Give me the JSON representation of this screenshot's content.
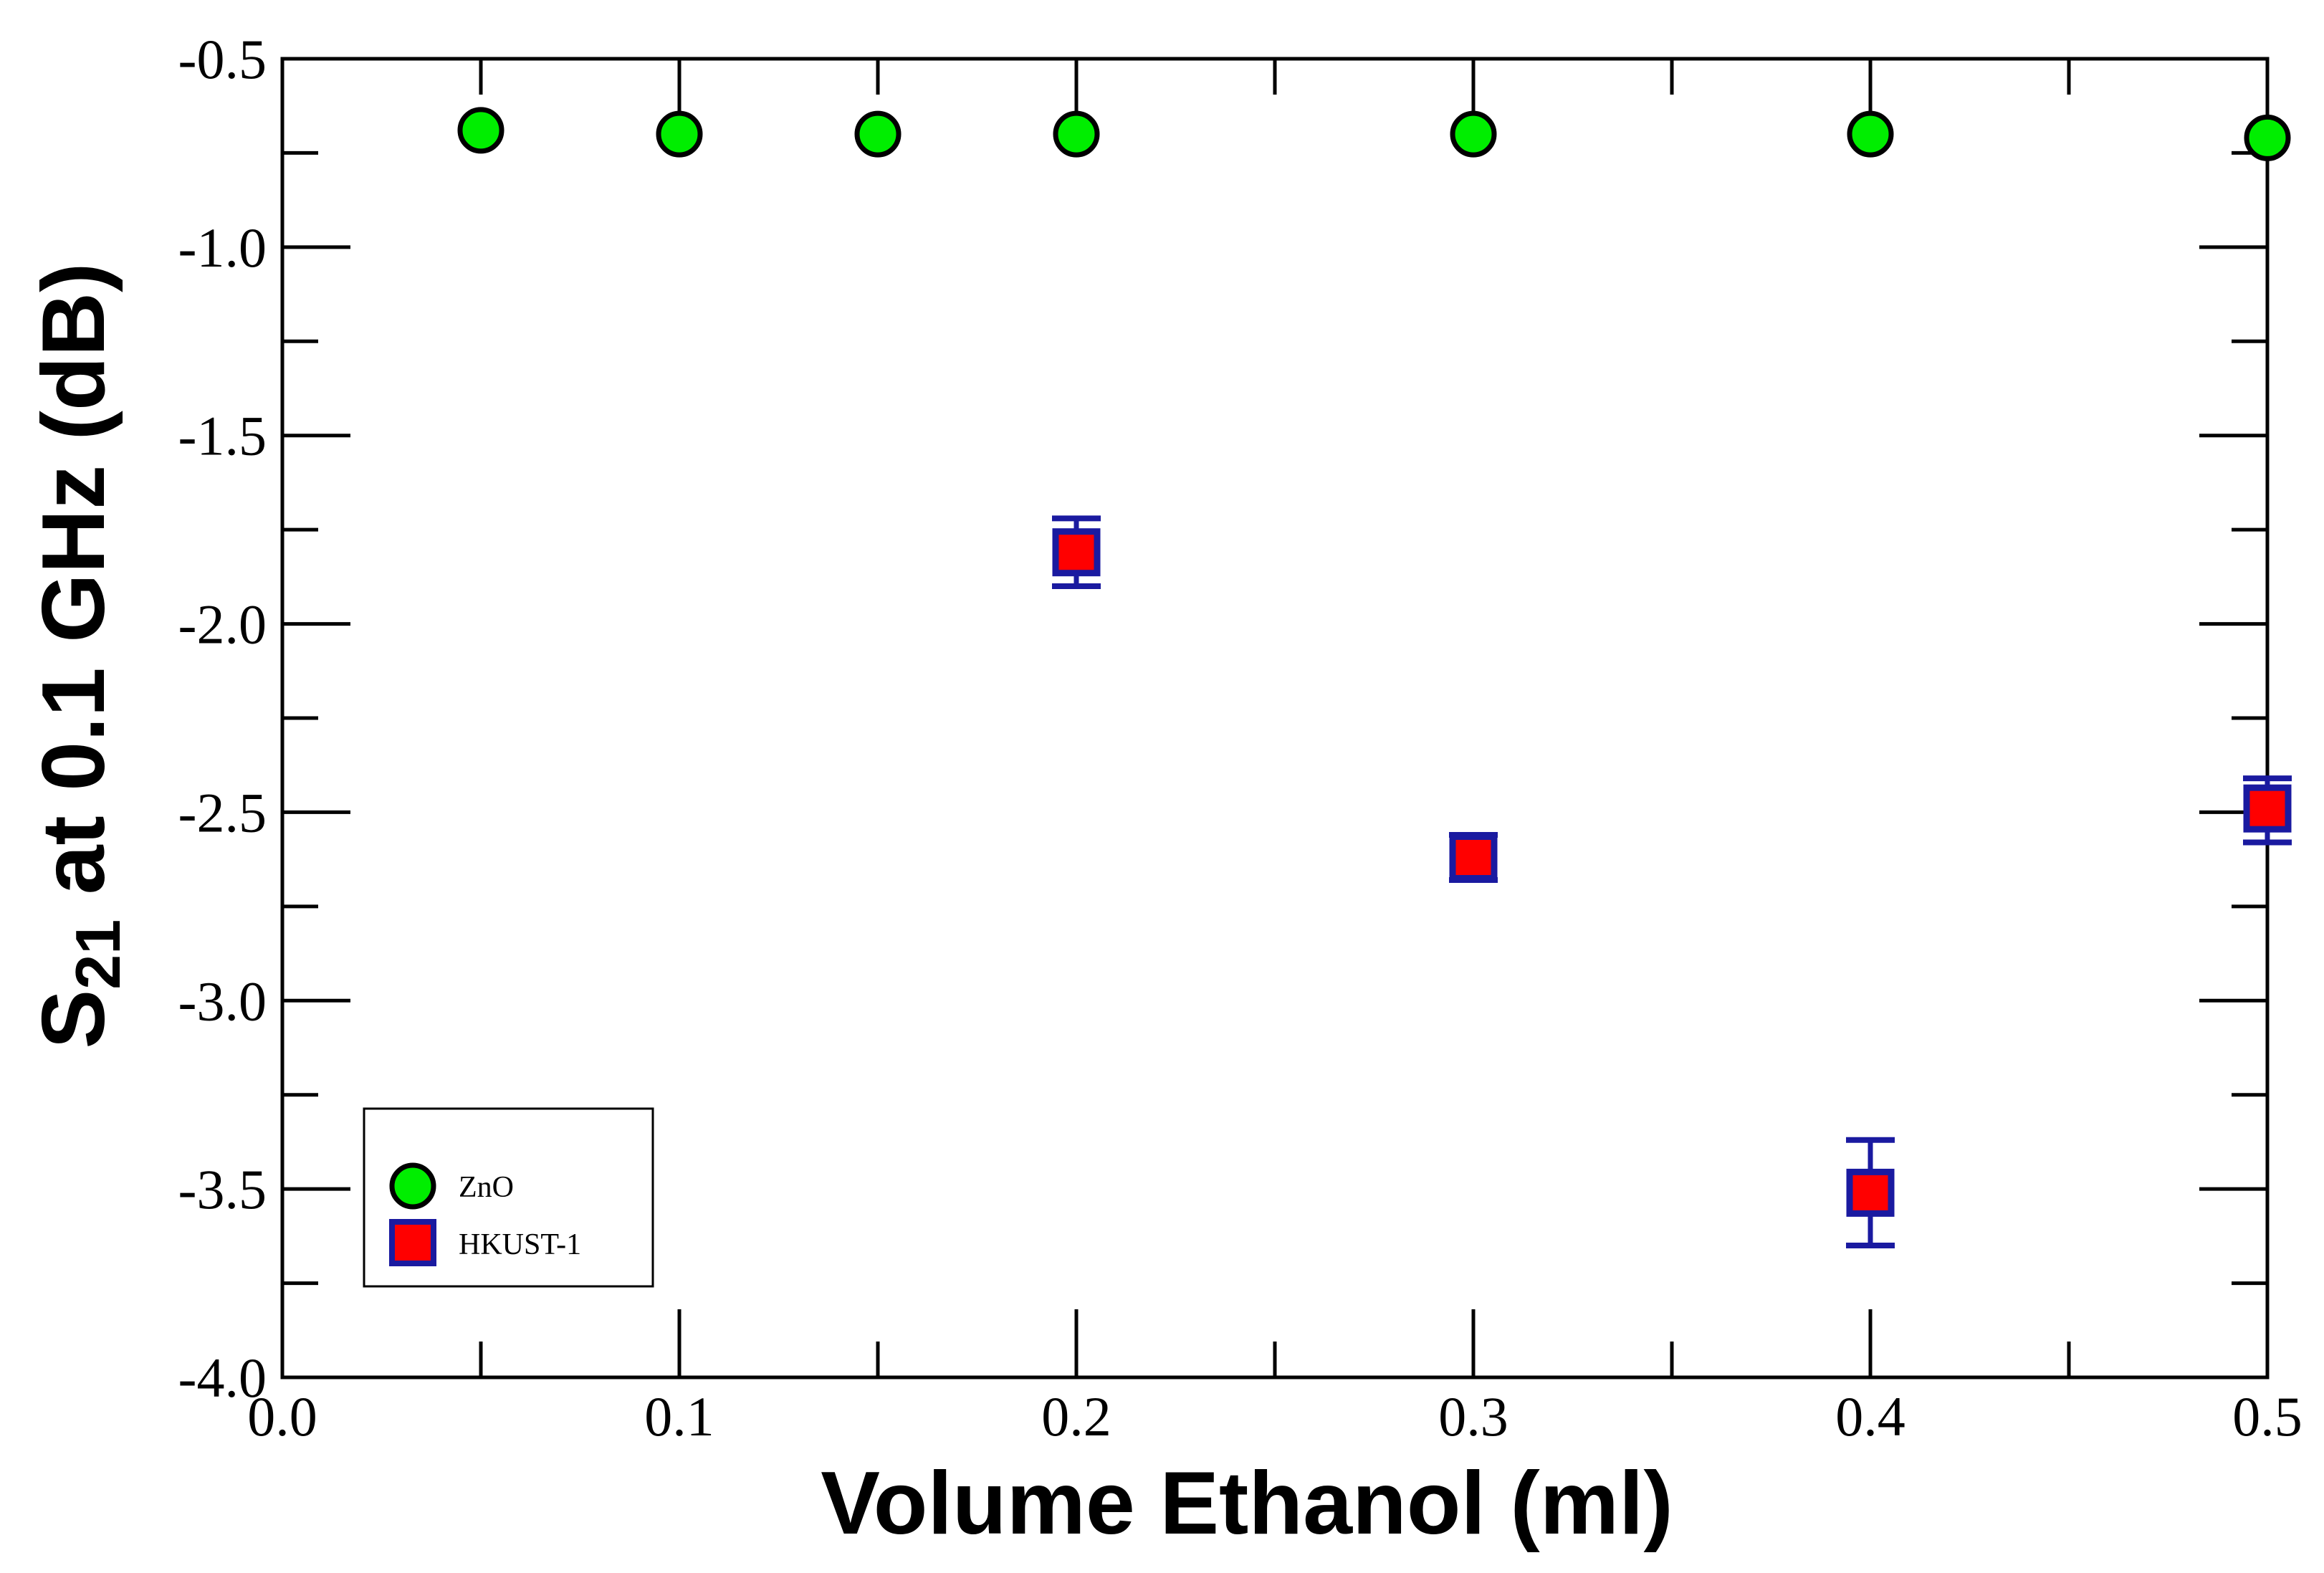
{
  "chart_data": {
    "type": "scatter",
    "xlabel": "Volume Ethanol (ml)",
    "ylabel_main": "S",
    "ylabel_sub": "21",
    "ylabel_rest": " at 0.1 GHz (dB)",
    "xlim": [
      0.0,
      0.5
    ],
    "ylim": [
      -4.0,
      -0.5
    ],
    "xticks": [
      "0.0",
      "0.1",
      "0.2",
      "0.3",
      "0.4",
      "0.5"
    ],
    "yticks": [
      "-4.0",
      "-3.5",
      "-3.0",
      "-2.5",
      "-2.0",
      "-1.5",
      "-1.0",
      "-0.5"
    ],
    "grid": false,
    "legend_position": "bottom-left",
    "series": [
      {
        "name": "ZnO",
        "marker": "circle",
        "fill": "#00ee00",
        "edge": "#000000",
        "x": [
          0.05,
          0.1,
          0.15,
          0.2,
          0.3,
          0.4,
          0.5
        ],
        "y": [
          -0.69,
          -0.7,
          -0.7,
          -0.7,
          -0.7,
          -0.7,
          -0.71
        ]
      },
      {
        "name": "HKUST-1",
        "marker": "square",
        "fill": "#ff0000",
        "edge": "#1a1aa0",
        "x": [
          0.2,
          0.3,
          0.4,
          0.5
        ],
        "y": [
          -1.81,
          -2.62,
          -3.51,
          -2.49
        ],
        "err_low": [
          -1.9,
          -2.68,
          -3.65,
          -2.58
        ],
        "err_high": [
          -1.72,
          -2.56,
          -3.37,
          -2.41
        ]
      }
    ]
  }
}
